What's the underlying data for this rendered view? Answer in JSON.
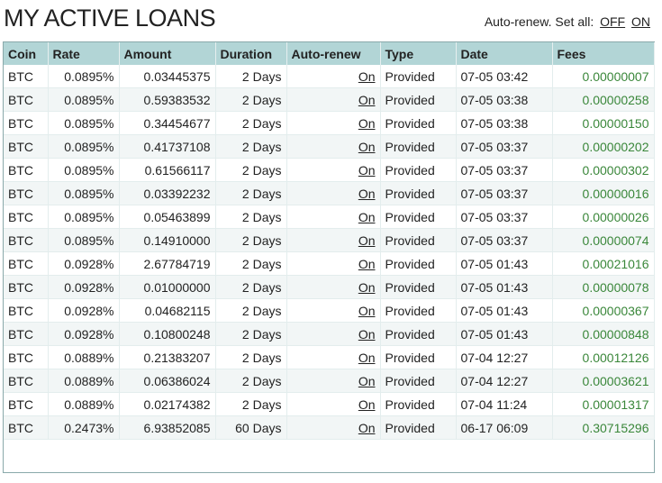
{
  "title": "MY ACTIVE LOANS",
  "autorenew_setall": {
    "label": "Auto-renew. Set all:",
    "off": "OFF",
    "on": "ON"
  },
  "colors": {
    "header_bg": "#b2d5d6",
    "fees": "#3a873a"
  },
  "columns": [
    "Coin",
    "Rate",
    "Amount",
    "Duration",
    "Auto-renew",
    "Type",
    "Date",
    "Fees"
  ],
  "rows": [
    [
      "BTC",
      "0.0895%",
      "0.03445375",
      "2 Days",
      "On",
      "Provided",
      "07-05 03:42",
      "0.00000007"
    ],
    [
      "BTC",
      "0.0895%",
      "0.59383532",
      "2 Days",
      "On",
      "Provided",
      "07-05 03:38",
      "0.00000258"
    ],
    [
      "BTC",
      "0.0895%",
      "0.34454677",
      "2 Days",
      "On",
      "Provided",
      "07-05 03:38",
      "0.00000150"
    ],
    [
      "BTC",
      "0.0895%",
      "0.41737108",
      "2 Days",
      "On",
      "Provided",
      "07-05 03:37",
      "0.00000202"
    ],
    [
      "BTC",
      "0.0895%",
      "0.61566117",
      "2 Days",
      "On",
      "Provided",
      "07-05 03:37",
      "0.00000302"
    ],
    [
      "BTC",
      "0.0895%",
      "0.03392232",
      "2 Days",
      "On",
      "Provided",
      "07-05 03:37",
      "0.00000016"
    ],
    [
      "BTC",
      "0.0895%",
      "0.05463899",
      "2 Days",
      "On",
      "Provided",
      "07-05 03:37",
      "0.00000026"
    ],
    [
      "BTC",
      "0.0895%",
      "0.14910000",
      "2 Days",
      "On",
      "Provided",
      "07-05 03:37",
      "0.00000074"
    ],
    [
      "BTC",
      "0.0928%",
      "2.67784719",
      "2 Days",
      "On",
      "Provided",
      "07-05 01:43",
      "0.00021016"
    ],
    [
      "BTC",
      "0.0928%",
      "0.01000000",
      "2 Days",
      "On",
      "Provided",
      "07-05 01:43",
      "0.00000078"
    ],
    [
      "BTC",
      "0.0928%",
      "0.04682115",
      "2 Days",
      "On",
      "Provided",
      "07-05 01:43",
      "0.00000367"
    ],
    [
      "BTC",
      "0.0928%",
      "0.10800248",
      "2 Days",
      "On",
      "Provided",
      "07-05 01:43",
      "0.00000848"
    ],
    [
      "BTC",
      "0.0889%",
      "0.21383207",
      "2 Days",
      "On",
      "Provided",
      "07-04 12:27",
      "0.00012126"
    ],
    [
      "BTC",
      "0.0889%",
      "0.06386024",
      "2 Days",
      "On",
      "Provided",
      "07-04 12:27",
      "0.00003621"
    ],
    [
      "BTC",
      "0.0889%",
      "0.02174382",
      "2 Days",
      "On",
      "Provided",
      "07-04 11:24",
      "0.00001317"
    ],
    [
      "BTC",
      "0.2473%",
      "6.93852085",
      "60 Days",
      "On",
      "Provided",
      "06-17 06:09",
      "0.30715296"
    ]
  ]
}
